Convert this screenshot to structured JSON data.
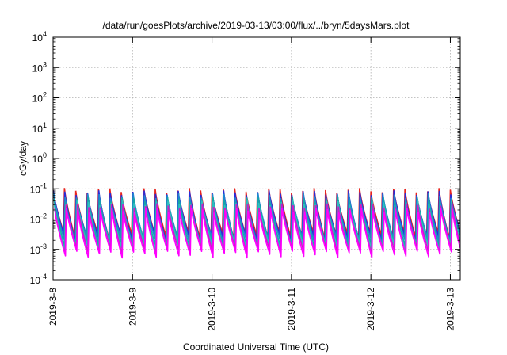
{
  "chart_data": {
    "type": "line",
    "title": "/data/run/goesPlots/archive/2019-03-13/03:00/flux/../bryn/5daysMars.plot",
    "xlabel": "Coordinated Universal Time (UTC)",
    "ylabel": "cGy/day",
    "yscale": "log",
    "ylim": [
      0.0001,
      10000
    ],
    "xlim": [
      "2019-03-08T00:00",
      "2019-03-13T03:00"
    ],
    "grid": true,
    "x_tick_labels": [
      "2019-3-8",
      "2019-3-9",
      "2019-3-10",
      "2019-3-11",
      "2019-3-12",
      "2019-3-13"
    ],
    "y_tick_labels": [
      {
        "base": "10",
        "exp": "4"
      },
      {
        "base": "10",
        "exp": "3"
      },
      {
        "base": "10",
        "exp": "2"
      },
      {
        "base": "10",
        "exp": "1"
      },
      {
        "base": "10",
        "exp": "0"
      },
      {
        "base": "10",
        "exp": "-1"
      },
      {
        "base": "10",
        "exp": "-2"
      },
      {
        "base": "10",
        "exp": "-3"
      },
      {
        "base": "10",
        "exp": "-4"
      }
    ],
    "series_pattern": {
      "cycles_per_day": 7,
      "peak_values": [
        0.09,
        0.075,
        0.06,
        0.045,
        0.035,
        0.028,
        0.02
      ],
      "trough_values": [
        0.003,
        0.0025,
        0.002,
        0.0015,
        0.0012,
        0.0009,
        0.0007
      ]
    },
    "series": [
      {
        "color": "#e8251f"
      },
      {
        "color": "#2b2bd8"
      },
      {
        "color": "#1e88d0"
      },
      {
        "color": "#16a6a6"
      },
      {
        "color": "#2dbfbf"
      },
      {
        "color": "#c81ec8"
      },
      {
        "color": "#ff00ff"
      }
    ]
  }
}
